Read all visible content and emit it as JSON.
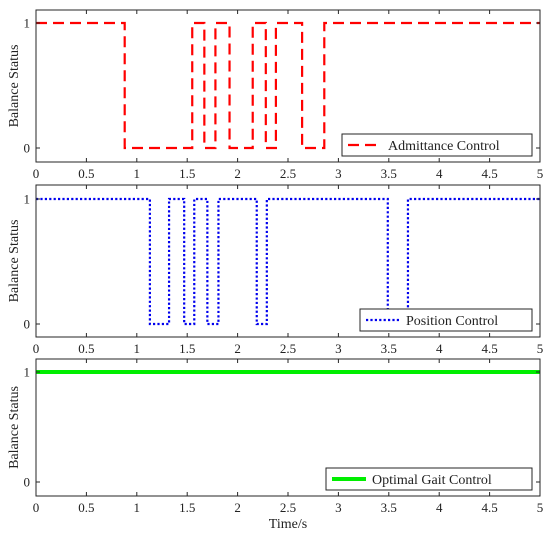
{
  "chart_data": [
    {
      "type": "line",
      "ylabel": "Balance Status",
      "xlabel": "",
      "xlim": [
        0,
        5
      ],
      "ylim": [
        0,
        1
      ],
      "xticks": [
        "0",
        "0.5",
        "1",
        "1.5",
        "2",
        "2.5",
        "3",
        "3.5",
        "4",
        "4.5",
        "5"
      ],
      "yticks": [
        "0",
        "1"
      ],
      "legend_position": "bottom-right",
      "series": [
        {
          "name": "Admittance Control",
          "color": "#ff0000",
          "style": "dashed",
          "x": [
            0,
            0.88,
            0.88,
            1.55,
            1.55,
            1.67,
            1.67,
            1.78,
            1.78,
            1.92,
            1.92,
            2.15,
            2.15,
            2.28,
            2.28,
            2.38,
            2.38,
            2.64,
            2.64,
            2.86,
            2.86,
            5
          ],
          "y": [
            1,
            1,
            0,
            0,
            1,
            1,
            0,
            0,
            1,
            1,
            0,
            0,
            1,
            1,
            0,
            0,
            1,
            1,
            0,
            0,
            1,
            1
          ]
        }
      ]
    },
    {
      "type": "line",
      "ylabel": "Balance Status",
      "xlabel": "",
      "xlim": [
        0,
        5
      ],
      "ylim": [
        0,
        1
      ],
      "xticks": [
        "0",
        "0.5",
        "1",
        "1.5",
        "2",
        "2.5",
        "3",
        "3.5",
        "4",
        "4.5",
        "5"
      ],
      "yticks": [
        "0",
        "1"
      ],
      "legend_position": "bottom-right",
      "series": [
        {
          "name": "Position Control",
          "color": "#0000ee",
          "style": "dotted",
          "x": [
            0,
            1.13,
            1.13,
            1.32,
            1.32,
            1.47,
            1.47,
            1.57,
            1.57,
            1.7,
            1.7,
            1.81,
            1.81,
            2.19,
            2.19,
            2.29,
            2.29,
            3.49,
            3.49,
            3.69,
            3.69,
            5
          ],
          "y": [
            1,
            1,
            0,
            0,
            1,
            1,
            0,
            0,
            1,
            1,
            0,
            0,
            1,
            1,
            0,
            0,
            1,
            1,
            0,
            0,
            1,
            1
          ]
        }
      ]
    },
    {
      "type": "line",
      "ylabel": "Balance Status",
      "xlabel": "Time/s",
      "xlim": [
        0,
        5
      ],
      "ylim": [
        0,
        1
      ],
      "xticks": [
        "0",
        "0.5",
        "1",
        "1.5",
        "2",
        "2.5",
        "3",
        "3.5",
        "4",
        "4.5",
        "5"
      ],
      "yticks": [
        "0",
        "1"
      ],
      "legend_position": "bottom-right",
      "series": [
        {
          "name": "Optimal Gait Control",
          "color": "#00ee00",
          "style": "solid",
          "x": [
            0,
            5
          ],
          "y": [
            1,
            1
          ]
        }
      ]
    }
  ]
}
